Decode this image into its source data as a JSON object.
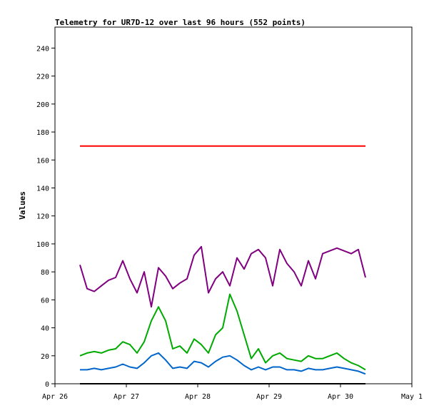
{
  "chart_data": {
    "type": "line",
    "title": "Telemetry for UR7D-12 over last 96 hours (552 points)",
    "xlabel": "",
    "ylabel": "Values",
    "ylim": [
      0,
      255
    ],
    "xlim": [
      "Apr 26",
      "May 1"
    ],
    "grid": false,
    "legend": "none",
    "x_ticks": [
      "Apr 26",
      "Apr 27",
      "Apr 28",
      "Apr 29",
      "Apr 30",
      "May 1"
    ],
    "y_ticks": [
      0,
      20,
      40,
      60,
      80,
      100,
      120,
      140,
      160,
      180,
      200,
      220,
      240
    ],
    "x_days": [
      0.35,
      0.45,
      0.55,
      0.65,
      0.75,
      0.85,
      0.95,
      1.05,
      1.15,
      1.25,
      1.35,
      1.45,
      1.55,
      1.65,
      1.75,
      1.85,
      1.95,
      2.05,
      2.15,
      2.25,
      2.35,
      2.45,
      2.55,
      2.65,
      2.75,
      2.85,
      2.95,
      3.05,
      3.15,
      3.25,
      3.35,
      3.45,
      3.55,
      3.65,
      3.75,
      3.85,
      3.95,
      4.05,
      4.15,
      4.25,
      4.35
    ],
    "series": [
      {
        "color": "#ff0000",
        "values": [
          170,
          170,
          170,
          170,
          170,
          170,
          170,
          170,
          170,
          170,
          170,
          170,
          170,
          170,
          170,
          170,
          170,
          170,
          170,
          170,
          170,
          170,
          170,
          170,
          170,
          170,
          170,
          170,
          170,
          170,
          170,
          170,
          170,
          170,
          170,
          170,
          170,
          170,
          170,
          170,
          170
        ]
      },
      {
        "color": "#800080",
        "values": [
          85,
          68,
          66,
          70,
          74,
          76,
          88,
          75,
          65,
          80,
          55,
          83,
          77,
          68,
          72,
          75,
          92,
          98,
          65,
          75,
          80,
          70,
          90,
          82,
          93,
          96,
          90,
          70,
          96,
          86,
          80,
          70,
          88,
          75,
          93,
          95,
          97,
          95,
          93,
          96,
          76
        ]
      },
      {
        "color": "#00aa00",
        "values": [
          20,
          22,
          23,
          22,
          24,
          25,
          30,
          28,
          22,
          30,
          45,
          55,
          45,
          25,
          27,
          22,
          32,
          28,
          22,
          35,
          40,
          64,
          52,
          35,
          18,
          25,
          15,
          20,
          22,
          18,
          17,
          16,
          20,
          18,
          18,
          20,
          22,
          18,
          15,
          13,
          10
        ]
      },
      {
        "color": "#0066cc",
        "values": [
          10,
          10,
          11,
          10,
          11,
          12,
          14,
          12,
          11,
          15,
          20,
          22,
          17,
          11,
          12,
          11,
          16,
          15,
          12,
          16,
          19,
          20,
          17,
          13,
          10,
          12,
          10,
          12,
          12,
          10,
          10,
          9,
          11,
          10,
          10,
          11,
          12,
          11,
          10,
          9,
          7
        ]
      },
      {
        "color": "#000000",
        "values": [
          0,
          0,
          0,
          0,
          0,
          0,
          0,
          0,
          0,
          0,
          0,
          0,
          0,
          0,
          0,
          0,
          0,
          0,
          0,
          0,
          0,
          0,
          0,
          0,
          0,
          0,
          0,
          0,
          0,
          0,
          0,
          0,
          0,
          0,
          0,
          0,
          0,
          0,
          0,
          0,
          0
        ]
      }
    ]
  }
}
